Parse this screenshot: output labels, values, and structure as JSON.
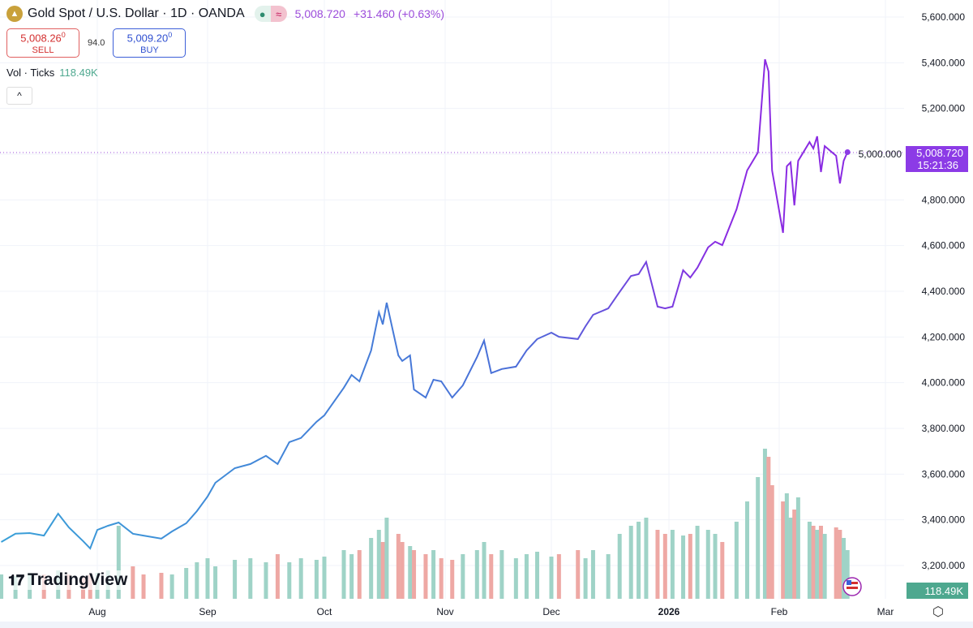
{
  "header": {
    "symbol_title": "Gold Spot / U.S. Dollar · 1D · OANDA",
    "status_dot": "●",
    "status_icon": "≈",
    "last": "5,008.720",
    "change": "+31.460 (+0.63%)"
  },
  "trade": {
    "sell_price": "5,008.26",
    "sell_sup": "0",
    "sell_label": "SELL",
    "spread": "94.0",
    "buy_price": "5,009.20",
    "buy_sup": "0",
    "buy_label": "BUY"
  },
  "volume_indicator": {
    "label": "Vol · Ticks",
    "value": "118.49K"
  },
  "collapse_icon": "^",
  "watermark": "TradingView",
  "price_label": {
    "price": "5,008.720",
    "countdown": "15:21:36",
    "color": "#8c3be6"
  },
  "volume_label": {
    "value": "118.49K",
    "color": "#4ea88f"
  },
  "chart_data": {
    "type": "line",
    "title": "Gold Spot / U.S. Dollar · 1D · OANDA",
    "ylim": [
      3100,
      5650
    ],
    "y_ticks": [
      "5,600.000",
      "5,400.000",
      "5,200.000",
      "5,000.000",
      "4,800.000",
      "4,600.000",
      "4,400.000",
      "4,200.000",
      "4,000.000",
      "3,800.000",
      "3,600.000",
      "3,400.000",
      "3,200.000"
    ],
    "y_tick_values": [
      5600,
      5400,
      5200,
      5000,
      4800,
      4600,
      4400,
      4200,
      4000,
      3800,
      3600,
      3400,
      3200
    ],
    "x_ticks": [
      {
        "label": "Aug",
        "date": "2025-08-01"
      },
      {
        "label": "Sep",
        "date": "2025-09-01"
      },
      {
        "label": "Oct",
        "date": "2025-10-01"
      },
      {
        "label": "Nov",
        "date": "2025-11-01"
      },
      {
        "label": "Dec",
        "date": "2025-12-01"
      },
      {
        "label": "2026",
        "date": "2026-01-01"
      },
      {
        "label": "Feb",
        "date": "2026-02-01"
      },
      {
        "label": "Mar",
        "date": "2026-03-01"
      }
    ],
    "grid": true,
    "line_colors": [
      "#3aa0d8",
      "#4a6fd8",
      "#8a2be2"
    ],
    "volume_colors": {
      "up": "#9fd3c7",
      "down": "#eea8a4"
    },
    "series": [
      {
        "points": [
          [
            "2025-07-05",
            3303
          ],
          [
            "2025-07-09",
            3339
          ],
          [
            "2025-07-13",
            3342
          ],
          [
            "2025-07-17",
            3331
          ],
          [
            "2025-07-21",
            3427
          ],
          [
            "2025-07-24",
            3367
          ],
          [
            "2025-07-28",
            3307
          ],
          [
            "2025-07-30",
            3275
          ],
          [
            "2025-08-01",
            3356
          ],
          [
            "2025-08-04",
            3374
          ],
          [
            "2025-08-07",
            3388
          ],
          [
            "2025-08-11",
            3339
          ],
          [
            "2025-08-14",
            3331
          ],
          [
            "2025-08-19",
            3318
          ],
          [
            "2025-08-22",
            3349
          ],
          [
            "2025-08-26",
            3385
          ],
          [
            "2025-08-29",
            3438
          ],
          [
            "2025-09-01",
            3502
          ],
          [
            "2025-09-03",
            3562
          ],
          [
            "2025-09-08",
            3626
          ],
          [
            "2025-09-12",
            3644
          ],
          [
            "2025-09-16",
            3680
          ],
          [
            "2025-09-19",
            3644
          ],
          [
            "2025-09-22",
            3740
          ],
          [
            "2025-09-25",
            3758
          ],
          [
            "2025-09-29",
            3829
          ],
          [
            "2025-10-01",
            3857
          ],
          [
            "2025-10-06",
            3978
          ],
          [
            "2025-10-08",
            4034
          ],
          [
            "2025-10-10",
            4006
          ],
          [
            "2025-10-13",
            4141
          ],
          [
            "2025-10-15",
            4308
          ],
          [
            "2025-10-16",
            4255
          ],
          [
            "2025-10-17",
            4350
          ],
          [
            "2025-10-20",
            4119
          ],
          [
            "2025-10-21",
            4095
          ],
          [
            "2025-10-23",
            4119
          ],
          [
            "2025-10-24",
            3970
          ],
          [
            "2025-10-27",
            3935
          ],
          [
            "2025-10-29",
            4013
          ],
          [
            "2025-10-31",
            4006
          ],
          [
            "2025-11-03",
            3935
          ],
          [
            "2025-11-06",
            3988
          ],
          [
            "2025-11-10",
            4112
          ],
          [
            "2025-11-12",
            4184
          ],
          [
            "2025-11-14",
            4042
          ],
          [
            "2025-11-17",
            4060
          ],
          [
            "2025-11-21",
            4070
          ],
          [
            "2025-11-24",
            4141
          ],
          [
            "2025-11-27",
            4191
          ],
          [
            "2025-12-01",
            4219
          ],
          [
            "2025-12-03",
            4201
          ],
          [
            "2025-12-08",
            4191
          ],
          [
            "2025-12-10",
            4247
          ],
          [
            "2025-12-12",
            4297
          ],
          [
            "2025-12-16",
            4325
          ],
          [
            "2025-12-19",
            4397
          ],
          [
            "2025-12-22",
            4467
          ],
          [
            "2025-12-24",
            4475
          ],
          [
            "2025-12-26",
            4528
          ],
          [
            "2025-12-29",
            4333
          ],
          [
            "2025-12-31",
            4325
          ],
          [
            "2026-01-02",
            4333
          ],
          [
            "2026-01-05",
            4492
          ],
          [
            "2026-01-07",
            4460
          ],
          [
            "2026-01-09",
            4503
          ],
          [
            "2026-01-12",
            4592
          ],
          [
            "2026-01-14",
            4617
          ],
          [
            "2026-01-16",
            4602
          ],
          [
            "2026-01-20",
            4759
          ],
          [
            "2026-01-23",
            4929
          ],
          [
            "2026-01-26",
            5007
          ],
          [
            "2026-01-28",
            5415
          ],
          [
            "2026-01-29",
            5362
          ],
          [
            "2026-01-30",
            4929
          ],
          [
            "2026-02-02",
            4656
          ],
          [
            "2026-02-03",
            4947
          ],
          [
            "2026-02-04",
            4964
          ],
          [
            "2026-02-05",
            4776
          ],
          [
            "2026-02-06",
            4971
          ],
          [
            "2026-02-09",
            5053
          ],
          [
            "2026-02-10",
            5025
          ],
          [
            "2026-02-11",
            5078
          ],
          [
            "2026-02-12",
            4922
          ],
          [
            "2026-02-13",
            5035
          ],
          [
            "2026-02-16",
            4993
          ],
          [
            "2026-02-17",
            4872
          ],
          [
            "2026-02-18",
            4971
          ],
          [
            "2026-02-19",
            5009
          ]
        ]
      }
    ],
    "volume": [
      30,
      28,
      32,
      30,
      35,
      30,
      28,
      30,
      32,
      35,
      90,
      40,
      30,
      32,
      30,
      38,
      45,
      50,
      40,
      48,
      50,
      45,
      55,
      45,
      50,
      48,
      52,
      60,
      55,
      60,
      75,
      85,
      70,
      100,
      80,
      70,
      65,
      60,
      55,
      60,
      50,
      48,
      55,
      60,
      70,
      55,
      60,
      50,
      55,
      58,
      52,
      55,
      60,
      50,
      60,
      55,
      80,
      90,
      95,
      100,
      85,
      80,
      85,
      78,
      80,
      90,
      85,
      80,
      70,
      95,
      120,
      150,
      185,
      175,
      140,
      120,
      130,
      100,
      110,
      125,
      95,
      90,
      85,
      90,
      80,
      88,
      85,
      75,
      60
    ]
  }
}
